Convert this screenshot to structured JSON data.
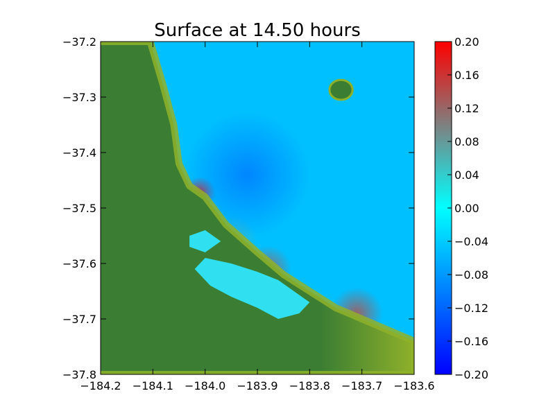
{
  "chart_data": {
    "type": "heatmap",
    "title": "Surface at 14.50 hours",
    "xlabel": "",
    "ylabel": "",
    "xlim": [
      -184.2,
      -183.6
    ],
    "ylim": [
      -37.8,
      -37.2
    ],
    "x_ticks": [
      -184.2,
      -184.1,
      -184.0,
      -183.9,
      -183.8,
      -183.7,
      -183.6
    ],
    "x_tick_labels": [
      "−184.2",
      "−184.1",
      "−184.0",
      "−183.9",
      "−183.8",
      "−183.7",
      "−183.6"
    ],
    "y_ticks": [
      -37.2,
      -37.3,
      -37.4,
      -37.5,
      -37.6,
      -37.7,
      -37.8
    ],
    "y_tick_labels": [
      "−37.2",
      "−37.3",
      "−37.4",
      "−37.5",
      "−37.6",
      "−37.7",
      "−37.8"
    ],
    "colorbar": {
      "range": [
        -0.2,
        0.2
      ],
      "ticks": [
        0.2,
        0.16,
        0.12,
        0.08,
        0.04,
        0.0,
        -0.04,
        -0.08,
        -0.12,
        -0.16,
        -0.2
      ],
      "tick_labels": [
        "0.20",
        "0.16",
        "0.12",
        "0.08",
        "0.04",
        "0.00",
        "−0.04",
        "−0.08",
        "−0.12",
        "−0.16",
        "−0.20"
      ],
      "colors": [
        "#0000ff",
        "#00ffff",
        "#ff0000"
      ]
    },
    "grid": false,
    "colors": {
      "land_dark": "#3a7d33",
      "land_light": "#8fb12a",
      "water": "#00c0ff",
      "inlet_water": "#30e0f0"
    },
    "features": [
      {
        "kind": "coast",
        "points": [
          [
            -184.2,
            -37.2
          ],
          [
            -184.105,
            -37.2
          ],
          [
            -184.08,
            -37.28
          ],
          [
            -184.06,
            -37.35
          ],
          [
            -184.05,
            -37.42
          ],
          [
            -184.03,
            -37.46
          ],
          [
            -184.0,
            -37.48
          ],
          [
            -183.96,
            -37.53
          ],
          [
            -183.9,
            -37.58
          ],
          [
            -183.85,
            -37.62
          ],
          [
            -183.8,
            -37.65
          ],
          [
            -183.75,
            -37.68
          ],
          [
            -183.7,
            -37.7
          ],
          [
            -183.65,
            -37.72
          ],
          [
            -183.6,
            -37.74
          ],
          [
            -183.6,
            -37.8
          ],
          [
            -184.2,
            -37.8
          ]
        ]
      },
      {
        "kind": "island",
        "center": [
          -183.74,
          -37.287
        ],
        "rx": 0.022,
        "ry": 0.018
      },
      {
        "kind": "inlet",
        "points": [
          [
            -184.0,
            -37.59
          ],
          [
            -183.95,
            -37.6
          ],
          [
            -183.9,
            -37.615
          ],
          [
            -183.86,
            -37.63
          ],
          [
            -183.83,
            -37.65
          ],
          [
            -183.8,
            -37.67
          ],
          [
            -183.82,
            -37.69
          ],
          [
            -183.86,
            -37.7
          ],
          [
            -183.9,
            -37.68
          ],
          [
            -183.95,
            -37.66
          ],
          [
            -183.99,
            -37.64
          ],
          [
            -184.02,
            -37.61
          ]
        ]
      },
      {
        "kind": "inlet",
        "points": [
          [
            -184.03,
            -37.55
          ],
          [
            -184.0,
            -37.54
          ],
          [
            -183.97,
            -37.56
          ],
          [
            -184.0,
            -37.58
          ],
          [
            -184.03,
            -37.57
          ]
        ]
      }
    ],
    "anomalies": [
      {
        "center": [
          -184.01,
          -37.472
        ],
        "value": 0.18,
        "radius": 0.03
      },
      {
        "center": [
          -183.88,
          -37.61
        ],
        "value": 0.12,
        "radius": 0.045
      },
      {
        "center": [
          -183.71,
          -37.69
        ],
        "value": 0.13,
        "radius": 0.05
      },
      {
        "center": [
          -183.95,
          -37.56
        ],
        "value": 0.06,
        "radius": 0.05
      },
      {
        "center": [
          -184.15,
          -37.205
        ],
        "value": -0.18,
        "radius": 0.035
      },
      {
        "center": [
          -183.92,
          -37.44
        ],
        "value": -0.1,
        "radius": 0.12
      }
    ]
  }
}
